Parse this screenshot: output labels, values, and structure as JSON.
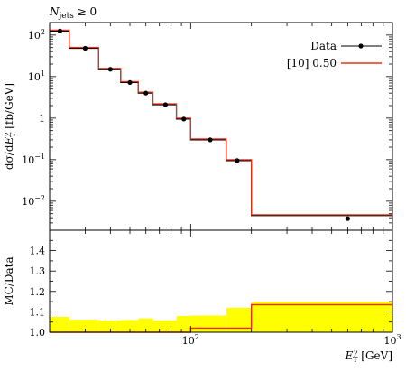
{
  "chart_data": [
    {
      "type": "line",
      "panel": "main",
      "annotation": "N_jets ≥ 0",
      "ylabel": "dσ/dE_T^γ [fb/GeV]",
      "xscale": "log",
      "yscale": "log",
      "xlim": [
        20,
        1000
      ],
      "ylim": [
        0.002,
        200
      ],
      "x_ticks": [
        100,
        1000
      ],
      "x_tick_labels": [
        "10^2",
        "10^3"
      ],
      "y_ticks": [
        0.01,
        0.1,
        1,
        10,
        100
      ],
      "y_tick_labels": [
        "10^-2",
        "10^-1",
        "1",
        "10^1",
        "10^2"
      ],
      "legend_position": "top-right",
      "series": [
        {
          "name": "Data",
          "kind": "points",
          "color": "#000000",
          "x": [
            22.5,
            30,
            40,
            50,
            60,
            75,
            92.5,
            125,
            170,
            600
          ],
          "y": [
            125,
            48,
            15,
            7.2,
            4.0,
            2.1,
            0.95,
            0.3,
            0.095,
            0.0038
          ]
        },
        {
          "name": "[10] 0.50",
          "kind": "step",
          "color": "#e8311a",
          "bin_edges": [
            20,
            25,
            35,
            45,
            55,
            65,
            85,
            100,
            150,
            200,
            1000
          ],
          "values": [
            125,
            48,
            15,
            7.2,
            4.0,
            2.1,
            0.95,
            0.3,
            0.095,
            0.0045
          ]
        }
      ]
    },
    {
      "type": "line",
      "panel": "ratio",
      "ylabel": "MC/Data",
      "xlabel": "E_T^γ [GeV]",
      "xscale": "log",
      "xlim": [
        20,
        1000
      ],
      "ylim": [
        1.0,
        1.5
      ],
      "y_ticks": [
        1.0,
        1.1,
        1.2,
        1.3,
        1.4
      ],
      "y_tick_labels": [
        "1.0",
        "1.1",
        "1.2",
        "1.3",
        "1.4"
      ],
      "band_color": "#ffff00",
      "bin_edges": [
        20,
        25,
        35,
        45,
        55,
        65,
        85,
        100,
        150,
        200,
        1000
      ],
      "uncertainty_band": [
        [
          0.93,
          1.075
        ],
        [
          0.94,
          1.062
        ],
        [
          0.945,
          1.057
        ],
        [
          0.945,
          1.06
        ],
        [
          0.94,
          1.068
        ],
        [
          0.945,
          1.058
        ],
        [
          0.92,
          1.08
        ],
        [
          0.92,
          1.082
        ],
        [
          0.9,
          1.12
        ],
        [
          0.87,
          1.15
        ]
      ],
      "series": [
        {
          "name": "[10] 0.50",
          "color": "#e8311a",
          "values": [
            1.0,
            1.0,
            1.0,
            1.0,
            1.0,
            1.0,
            1.0,
            1.02,
            1.02,
            1.135
          ]
        }
      ]
    }
  ]
}
